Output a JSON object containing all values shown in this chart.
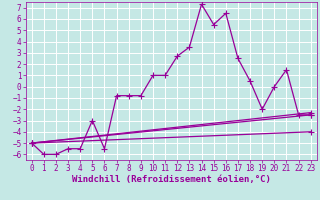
{
  "title": "",
  "xlabel": "Windchill (Refroidissement éolien,°C)",
  "ylabel": "",
  "background_color": "#c5e8e5",
  "grid_color": "#ffffff",
  "line_color": "#990099",
  "xlim": [
    -0.5,
    23.5
  ],
  "ylim": [
    -6.5,
    7.5
  ],
  "xticks": [
    0,
    1,
    2,
    3,
    4,
    5,
    6,
    7,
    8,
    9,
    10,
    11,
    12,
    13,
    14,
    15,
    16,
    17,
    18,
    19,
    20,
    21,
    22,
    23
  ],
  "yticks": [
    -6,
    -5,
    -4,
    -3,
    -2,
    -1,
    0,
    1,
    2,
    3,
    4,
    5,
    6,
    7
  ],
  "series1_x": [
    0,
    1,
    2,
    3,
    4,
    5,
    6,
    7,
    8,
    9,
    10,
    11,
    12,
    13,
    14,
    15,
    16,
    17,
    18,
    19,
    20,
    21,
    22,
    23
  ],
  "series1_y": [
    -5.0,
    -6.0,
    -6.0,
    -5.5,
    -5.5,
    -3.0,
    -5.5,
    -0.8,
    -0.8,
    -0.8,
    1.0,
    1.0,
    2.7,
    3.5,
    7.3,
    5.5,
    6.5,
    2.5,
    0.5,
    -2.0,
    0.0,
    1.5,
    -2.5,
    -2.5
  ],
  "series2_x": [
    0,
    23
  ],
  "series2_y": [
    -5.0,
    -2.5
  ],
  "series3_x": [
    0,
    23
  ],
  "series3_y": [
    -5.0,
    -2.3
  ],
  "series4_x": [
    0,
    23
  ],
  "series4_y": [
    -5.0,
    -4.0
  ],
  "marker": "+",
  "markersize": 4,
  "linewidth": 0.9,
  "xlabel_fontsize": 6.5,
  "tick_fontsize": 5.5
}
